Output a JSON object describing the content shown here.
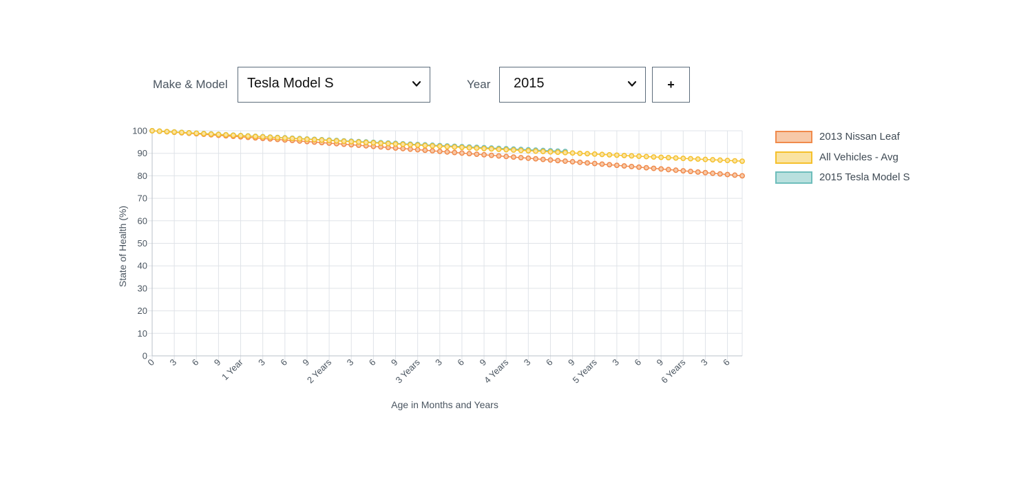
{
  "controls": {
    "make_model_label": "Make & Model",
    "make_model_value": "Tesla Model S",
    "year_label": "Year",
    "year_value": "2015",
    "add_label": "+"
  },
  "colors": {
    "nissan": "#f08a4b",
    "nissan_fill": "#f7c9a8",
    "avg": "#f5c02b",
    "avg_fill": "#fae3a2",
    "tesla": "#6dbdbb",
    "tesla_fill": "#b9e0de",
    "grid": "#dfe3e8"
  },
  "chart_data": {
    "type": "line",
    "xlabel": "Age in Months and Years",
    "ylabel": "State of Health (%)",
    "ylim": [
      0,
      100
    ],
    "xlim": [
      0,
      80
    ],
    "y_ticks": [
      0,
      10,
      20,
      30,
      40,
      50,
      60,
      70,
      80,
      90,
      100
    ],
    "x_ticks": [
      {
        "month": 0,
        "label": "0"
      },
      {
        "month": 3,
        "label": "3"
      },
      {
        "month": 6,
        "label": "6"
      },
      {
        "month": 9,
        "label": "9"
      },
      {
        "month": 12,
        "label": "1 Year"
      },
      {
        "month": 15,
        "label": "3"
      },
      {
        "month": 18,
        "label": "6"
      },
      {
        "month": 21,
        "label": "9"
      },
      {
        "month": 24,
        "label": "2 Years"
      },
      {
        "month": 27,
        "label": "3"
      },
      {
        "month": 30,
        "label": "6"
      },
      {
        "month": 33,
        "label": "9"
      },
      {
        "month": 36,
        "label": "3 Years"
      },
      {
        "month": 39,
        "label": "3"
      },
      {
        "month": 42,
        "label": "6"
      },
      {
        "month": 45,
        "label": "9"
      },
      {
        "month": 48,
        "label": "4 Years"
      },
      {
        "month": 51,
        "label": "3"
      },
      {
        "month": 54,
        "label": "6"
      },
      {
        "month": 57,
        "label": "9"
      },
      {
        "month": 60,
        "label": "5 Years"
      },
      {
        "month": 63,
        "label": "3"
      },
      {
        "month": 66,
        "label": "6"
      },
      {
        "month": 69,
        "label": "9"
      },
      {
        "month": 72,
        "label": "6 Years"
      },
      {
        "month": 75,
        "label": "3"
      },
      {
        "month": 78,
        "label": "6"
      }
    ],
    "legend": {
      "position": "right"
    },
    "series": [
      {
        "name": "2013 Nissan Leaf",
        "start_month": 0,
        "end_month": 80,
        "start_value": 100,
        "end_value": 80,
        "curvature": -0.8
      },
      {
        "name": "All Vehicles - Avg",
        "start_month": 0,
        "end_month": 80,
        "start_value": 100,
        "end_value": 86.5,
        "curvature": 0.6
      },
      {
        "name": "2015 Tesla Model S",
        "start_month": 0,
        "end_month": 56,
        "start_value": 100,
        "end_value": 90.8,
        "curvature": 0.6
      }
    ]
  }
}
